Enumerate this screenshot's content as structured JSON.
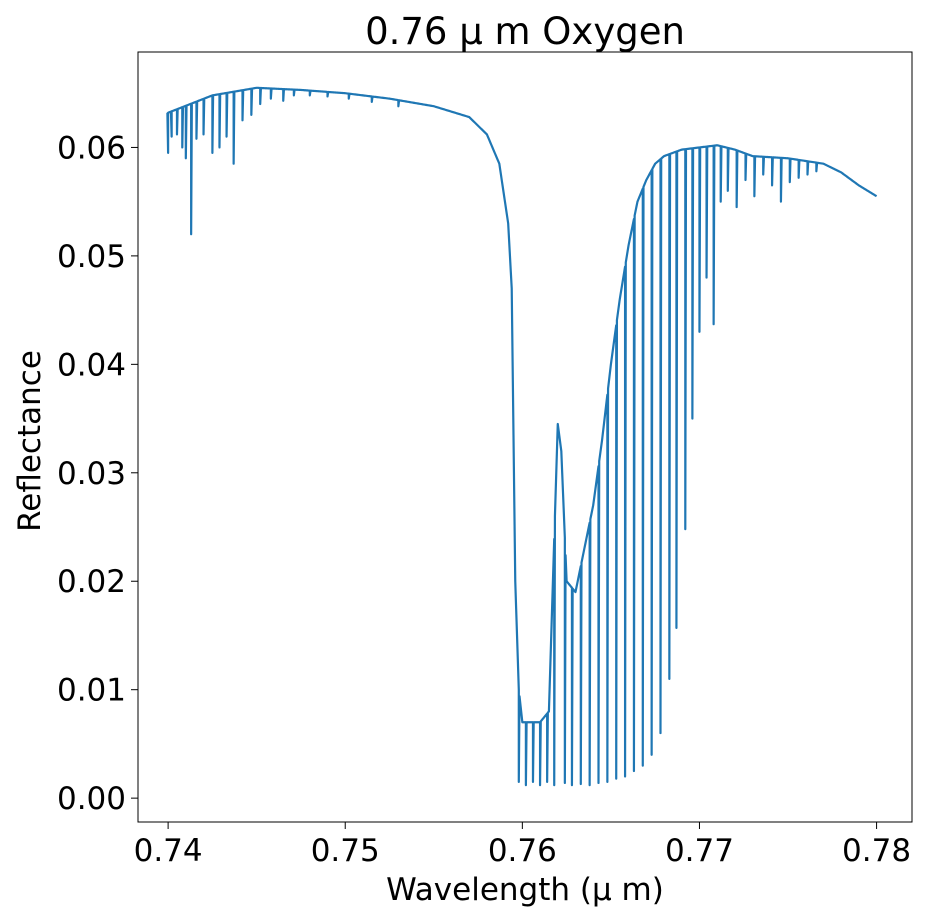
{
  "chart_data": {
    "type": "line",
    "title": "0.76 μ m  Oxygen",
    "xlabel": "Wavelength (μ m)",
    "ylabel": "Reflectance",
    "xlim": [
      0.7383,
      0.782
    ],
    "ylim": [
      -0.0022,
      0.0688
    ],
    "xticks": [
      0.74,
      0.75,
      0.76,
      0.77,
      0.78
    ],
    "xtick_labels": [
      "0.74",
      "0.75",
      "0.76",
      "0.77",
      "0.78"
    ],
    "yticks": [
      0.0,
      0.01,
      0.02,
      0.03,
      0.04,
      0.05,
      0.06
    ],
    "ytick_labels": [
      "0.00",
      "0.01",
      "0.02",
      "0.03",
      "0.04",
      "0.05",
      "0.06"
    ],
    "grid": false,
    "line_color": "#1f77b4",
    "series": [
      {
        "continuum": [
          [
            0.74,
            0.0632
          ],
          [
            0.7425,
            0.0648
          ],
          [
            0.745,
            0.0655
          ],
          [
            0.7475,
            0.0653
          ],
          [
            0.75,
            0.065
          ],
          [
            0.7525,
            0.0645
          ],
          [
            0.755,
            0.0638
          ],
          [
            0.757,
            0.0628
          ],
          [
            0.758,
            0.0612
          ],
          [
            0.7587,
            0.0585
          ],
          [
            0.7592,
            0.053
          ],
          [
            0.7594,
            0.047
          ],
          [
            0.7596,
            0.02
          ],
          [
            0.7598,
            0.01
          ],
          [
            0.76,
            0.007
          ],
          [
            0.761,
            0.007
          ],
          [
            0.7615,
            0.008
          ],
          [
            0.762,
            0.0345
          ],
          [
            0.7622,
            0.032
          ],
          [
            0.7625,
            0.02
          ],
          [
            0.763,
            0.019
          ],
          [
            0.7635,
            0.023
          ],
          [
            0.764,
            0.027
          ],
          [
            0.7645,
            0.033
          ],
          [
            0.765,
            0.04
          ],
          [
            0.7655,
            0.046
          ],
          [
            0.766,
            0.051
          ],
          [
            0.7665,
            0.055
          ],
          [
            0.767,
            0.057
          ],
          [
            0.7675,
            0.0585
          ],
          [
            0.768,
            0.0592
          ],
          [
            0.769,
            0.0598
          ],
          [
            0.77,
            0.06
          ],
          [
            0.771,
            0.0602
          ],
          [
            0.772,
            0.0598
          ],
          [
            0.773,
            0.0592
          ],
          [
            0.775,
            0.059
          ],
          [
            0.777,
            0.0585
          ],
          [
            0.778,
            0.0577
          ],
          [
            0.779,
            0.0565
          ],
          [
            0.78,
            0.0555
          ]
        ],
        "dips": [
          [
            0.74,
            0.0595
          ],
          [
            0.7402,
            0.061
          ],
          [
            0.7405,
            0.0612
          ],
          [
            0.7408,
            0.06
          ],
          [
            0.741,
            0.059
          ],
          [
            0.7413,
            0.052
          ],
          [
            0.7416,
            0.0608
          ],
          [
            0.742,
            0.0612
          ],
          [
            0.7425,
            0.0595
          ],
          [
            0.7429,
            0.06
          ],
          [
            0.7433,
            0.061
          ],
          [
            0.7437,
            0.0585
          ],
          [
            0.7442,
            0.0625
          ],
          [
            0.7447,
            0.063
          ],
          [
            0.7452,
            0.064
          ],
          [
            0.7458,
            0.0645
          ],
          [
            0.7465,
            0.0643
          ],
          [
            0.7471,
            0.0648
          ],
          [
            0.748,
            0.0648
          ],
          [
            0.749,
            0.0647
          ],
          [
            0.7502,
            0.0645
          ],
          [
            0.7515,
            0.0642
          ],
          [
            0.753,
            0.0638
          ],
          [
            0.7598,
            0.0015
          ],
          [
            0.7602,
            0.0012
          ],
          [
            0.7606,
            0.0015
          ],
          [
            0.761,
            0.0012
          ],
          [
            0.7614,
            0.0015
          ],
          [
            0.7618,
            0.0012
          ],
          [
            0.7624,
            0.0014
          ],
          [
            0.7628,
            0.0012
          ],
          [
            0.7633,
            0.0013
          ],
          [
            0.7638,
            0.0012
          ],
          [
            0.7643,
            0.0014
          ],
          [
            0.7648,
            0.0015
          ],
          [
            0.7653,
            0.0018
          ],
          [
            0.7658,
            0.002
          ],
          [
            0.7663,
            0.0025
          ],
          [
            0.7668,
            0.003
          ],
          [
            0.7673,
            0.004
          ],
          [
            0.7678,
            0.006
          ],
          [
            0.7683,
            0.011
          ],
          [
            0.7687,
            0.0157
          ],
          [
            0.7692,
            0.0248
          ],
          [
            0.7696,
            0.035
          ],
          [
            0.77,
            0.043
          ],
          [
            0.7704,
            0.048
          ],
          [
            0.7708,
            0.0437
          ],
          [
            0.7712,
            0.055
          ],
          [
            0.7716,
            0.056
          ],
          [
            0.7721,
            0.0545
          ],
          [
            0.7726,
            0.057
          ],
          [
            0.7731,
            0.0555
          ],
          [
            0.7736,
            0.0575
          ],
          [
            0.7741,
            0.0565
          ],
          [
            0.7746,
            0.055
          ],
          [
            0.7751,
            0.0568
          ],
          [
            0.7756,
            0.0572
          ],
          [
            0.7761,
            0.0575
          ],
          [
            0.7766,
            0.0578
          ]
        ]
      }
    ]
  }
}
